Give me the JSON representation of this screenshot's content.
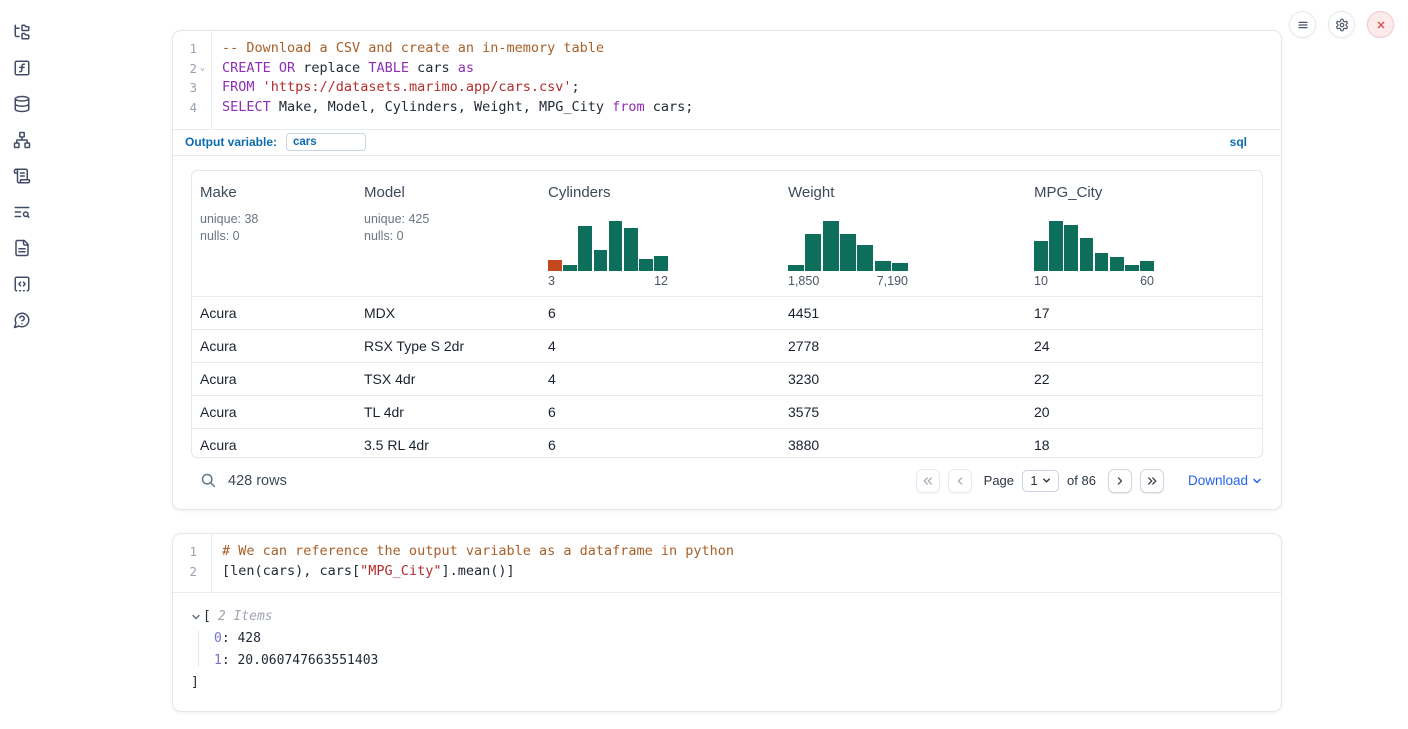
{
  "colors": {
    "accent_blue": "#0c6cae",
    "link_blue": "#2563eb",
    "histogram_green": "#0d6e5c",
    "histogram_orange": "#c3491c",
    "syntax_keyword": "#8c2fb5",
    "syntax_string": "#b32d2d",
    "syntax_comment": "#a85f28",
    "close_red": "#e04a4a"
  },
  "sidebar": {
    "icons": [
      "file-tree-icon",
      "function-icon",
      "database-icon",
      "dependency-graph-icon",
      "scroll-icon",
      "text-search-icon",
      "document-icon",
      "snippets-icon",
      "help-icon"
    ]
  },
  "topbar": {
    "icons": [
      "menu-icon",
      "settings-gear-icon",
      "close-icon"
    ]
  },
  "sql_cell": {
    "lines": [
      {
        "num": "1",
        "fold": false,
        "tokens": [
          {
            "text": "-- Download a CSV and create an in-memory table",
            "type": "comment"
          }
        ]
      },
      {
        "num": "2",
        "fold": true,
        "tokens": [
          {
            "text": "CREATE OR",
            "type": "keyword"
          },
          {
            "text": " replace ",
            "type": "plain"
          },
          {
            "text": "TABLE",
            "type": "keyword"
          },
          {
            "text": " cars ",
            "type": "plain"
          },
          {
            "text": "as",
            "type": "keyword"
          }
        ]
      },
      {
        "num": "3",
        "fold": false,
        "tokens": [
          {
            "text": "FROM",
            "type": "keyword"
          },
          {
            "text": " ",
            "type": "plain"
          },
          {
            "text": "'https://datasets.marimo.app/cars.csv'",
            "type": "string"
          },
          {
            "text": ";",
            "type": "plain"
          }
        ]
      },
      {
        "num": "4",
        "fold": false,
        "tokens": [
          {
            "text": "SELECT",
            "type": "keyword"
          },
          {
            "text": " Make, Model, Cylinders, Weight, MPG_City ",
            "type": "plain"
          },
          {
            "text": "from",
            "type": "keyword"
          },
          {
            "text": " cars;",
            "type": "plain"
          }
        ]
      }
    ],
    "footer": {
      "output_variable_label": "Output variable:",
      "output_variable_value": "cars",
      "language": "sql"
    }
  },
  "table": {
    "columns": [
      {
        "name": "Make",
        "stats": [
          "unique: 38",
          "nulls: 0"
        ]
      },
      {
        "name": "Model",
        "stats": [
          "unique: 425",
          "nulls: 0"
        ]
      },
      {
        "name": "Cylinders",
        "histogram": {
          "type": "bar",
          "color": "#0d6e5c",
          "bars": [
            {
              "h": 0.21,
              "color": "#c3491c"
            },
            {
              "h": 0.12
            },
            {
              "h": 0.87
            },
            {
              "h": 0.4
            },
            {
              "h": 0.96
            },
            {
              "h": 0.83
            },
            {
              "h": 0.23
            },
            {
              "h": 0.29
            }
          ],
          "min_label": "3",
          "max_label": "12"
        }
      },
      {
        "name": "Weight",
        "histogram": {
          "type": "bar",
          "color": "#0d6e5c",
          "bars": [
            {
              "h": 0.12
            },
            {
              "h": 0.71
            },
            {
              "h": 0.96
            },
            {
              "h": 0.71
            },
            {
              "h": 0.5
            },
            {
              "h": 0.19
            },
            {
              "h": 0.15
            }
          ],
          "min_label": "1,850",
          "max_label": "7,190"
        }
      },
      {
        "name": "MPG_City",
        "histogram": {
          "type": "bar",
          "color": "#0d6e5c",
          "bars": [
            {
              "h": 0.58
            },
            {
              "h": 0.96
            },
            {
              "h": 0.88
            },
            {
              "h": 0.63
            },
            {
              "h": 0.35
            },
            {
              "h": 0.27
            },
            {
              "h": 0.12
            },
            {
              "h": 0.19
            }
          ],
          "min_label": "10",
          "max_label": "60"
        }
      }
    ],
    "rows": [
      [
        "Acura",
        "MDX",
        "6",
        "4451",
        "17"
      ],
      [
        "Acura",
        "RSX Type S 2dr",
        "4",
        "2778",
        "24"
      ],
      [
        "Acura",
        "TSX 4dr",
        "4",
        "3230",
        "22"
      ],
      [
        "Acura",
        "TL 4dr",
        "6",
        "3575",
        "20"
      ],
      [
        "Acura",
        "3.5 RL 4dr",
        "6",
        "3880",
        "18"
      ]
    ],
    "footer": {
      "row_count": "428 rows",
      "page_label": "Page",
      "page_value": "1",
      "total_label": "of 86",
      "download_label": "Download"
    }
  },
  "python_cell": {
    "lines": [
      {
        "num": "1",
        "fold": false,
        "tokens": [
          {
            "text": "# We can reference the output variable as a dataframe in python",
            "type": "comment"
          }
        ]
      },
      {
        "num": "2",
        "fold": false,
        "tokens": [
          {
            "text": "[len(cars), cars[",
            "type": "plain"
          },
          {
            "text": "\"MPG_City\"",
            "type": "string"
          },
          {
            "text": "].mean()]",
            "type": "plain"
          }
        ]
      }
    ],
    "output": {
      "open_bracket": "[",
      "items_label": "2 Items",
      "items": [
        {
          "key": "0",
          "value": "428"
        },
        {
          "key": "1",
          "value": "20.060747663551403"
        }
      ],
      "close_bracket": "]"
    }
  }
}
